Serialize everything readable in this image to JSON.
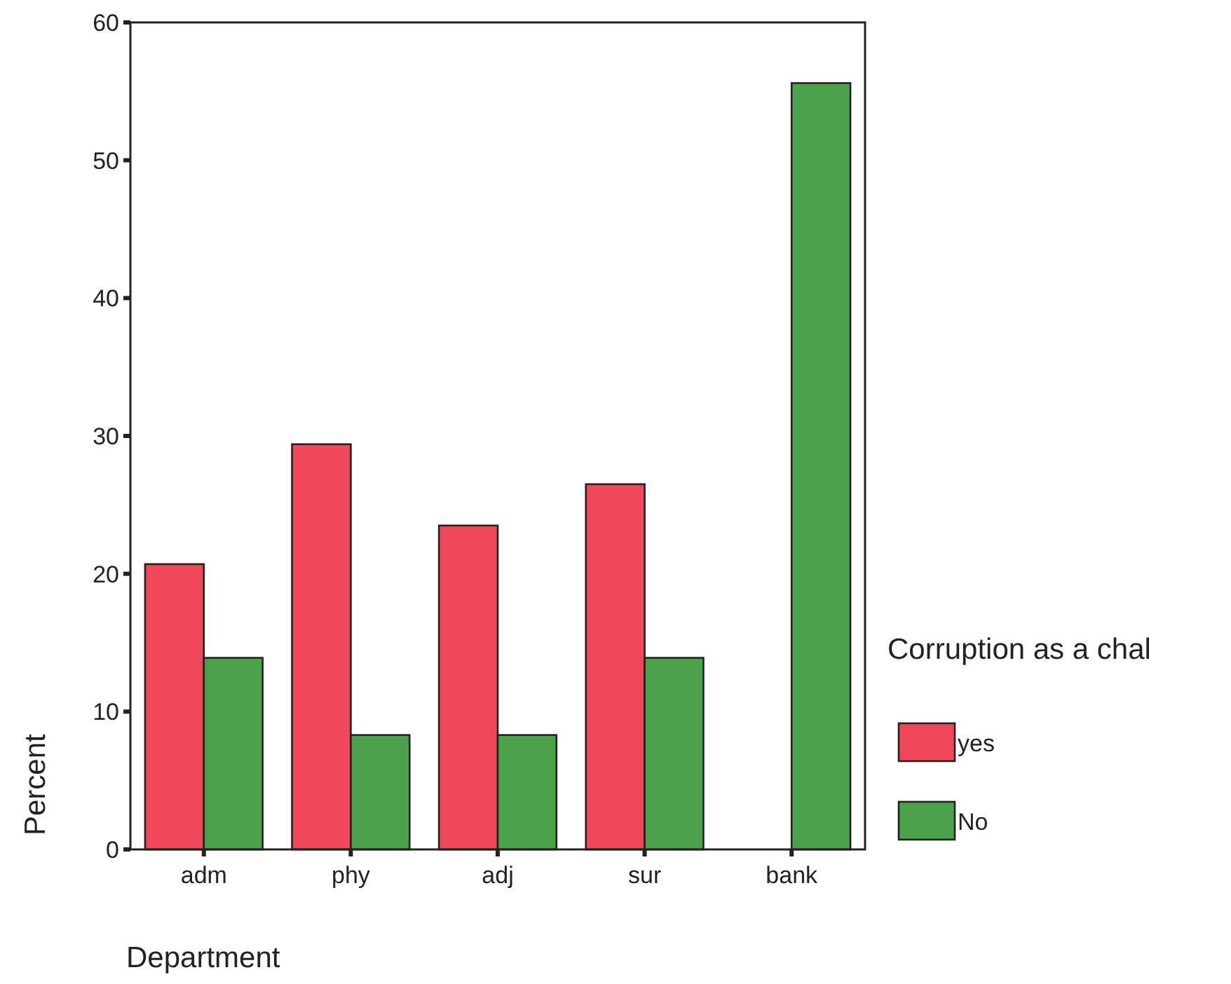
{
  "chart_data": {
    "type": "bar",
    "xlabel": "Department",
    "ylabel": "Percent",
    "legend_title": "Corruption as a chal",
    "categories": [
      "adm",
      "phy",
      "adj",
      "sur",
      "bank"
    ],
    "series": [
      {
        "name": "yes",
        "color": "#f0485a",
        "values": [
          20.7,
          29.4,
          23.5,
          26.5,
          null
        ]
      },
      {
        "name": "No",
        "color": "#4ca24a",
        "values": [
          13.9,
          8.3,
          8.3,
          13.9,
          55.6
        ]
      }
    ],
    "ylim": [
      0,
      60
    ],
    "yticks": [
      0,
      10,
      20,
      30,
      40,
      50,
      60
    ],
    "legend": "right"
  }
}
